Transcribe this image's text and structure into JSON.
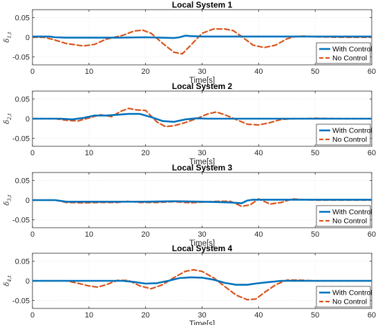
{
  "chart_data": [
    {
      "type": "line",
      "title": "Local System 1",
      "xlabel": "Time[s]",
      "ylabel_main": "δ",
      "ylabel_sub": "1,t",
      "xlim": [
        0,
        60
      ],
      "ylim": [
        -0.07,
        0.07
      ],
      "xticks": [
        "0",
        "10",
        "20",
        "30",
        "40",
        "50",
        "60"
      ],
      "yticks": [
        "0.05",
        "0",
        "-0.05"
      ],
      "grid": true,
      "legend_position": "lower-right",
      "series": [
        {
          "name": "With Control",
          "color": "#0072BD",
          "style": "solid",
          "x": [
            0,
            3,
            4,
            6,
            10,
            15,
            20,
            25,
            26,
            27,
            28,
            30,
            40,
            50,
            60
          ],
          "y": [
            0.002,
            0.002,
            0.0,
            -0.001,
            -0.001,
            -0.001,
            0.0,
            -0.002,
            0.0,
            0.004,
            0.003,
            0.002,
            0.002,
            0.002,
            0.002
          ]
        },
        {
          "name": "No Control",
          "color": "#D95319",
          "style": "dashed",
          "x": [
            0,
            2,
            3.5,
            6,
            9,
            11,
            13,
            16,
            18,
            19.5,
            21,
            23,
            25,
            26.5,
            28,
            30,
            32,
            34,
            35.5,
            37,
            39,
            41,
            43,
            45,
            46.5,
            48,
            50,
            55,
            60
          ],
          "y": [
            0.0,
            0.0,
            -0.005,
            -0.016,
            -0.022,
            -0.018,
            -0.005,
            0.005,
            0.016,
            0.018,
            0.01,
            -0.015,
            -0.038,
            -0.042,
            -0.02,
            0.01,
            0.021,
            0.021,
            0.017,
            0.002,
            -0.02,
            -0.026,
            -0.02,
            -0.004,
            0.002,
            0.003,
            0.001,
            0.0,
            0.0
          ]
        }
      ]
    },
    {
      "type": "line",
      "title": "Local System 2",
      "xlabel": "Time[s]",
      "ylabel_main": "δ",
      "ylabel_sub": "2,t",
      "xlim": [
        0,
        60
      ],
      "ylim": [
        -0.07,
        0.07
      ],
      "xticks": [
        "0",
        "10",
        "20",
        "30",
        "40",
        "50",
        "60"
      ],
      "yticks": [
        "0.05",
        "0",
        "-0.05"
      ],
      "grid": true,
      "legend_position": "lower-right",
      "series": [
        {
          "name": "With Control",
          "color": "#0072BD",
          "style": "solid",
          "x": [
            0,
            5,
            7,
            9,
            11,
            13,
            15,
            17,
            19,
            21,
            23,
            25,
            27,
            29,
            31,
            35,
            40,
            50,
            60
          ],
          "y": [
            0.0,
            0.0,
            -0.002,
            0.002,
            0.008,
            0.008,
            0.01,
            0.012,
            0.012,
            0.004,
            -0.006,
            -0.008,
            -0.002,
            0.001,
            0.0,
            0.0,
            0.0,
            0.0,
            0.0
          ]
        },
        {
          "name": "No Control",
          "color": "#D95319",
          "style": "dashed",
          "x": [
            0,
            4,
            6,
            8,
            10,
            12,
            14,
            15.5,
            17,
            18.5,
            20,
            22,
            23.5,
            25,
            27,
            29,
            31,
            32.5,
            34,
            36,
            38,
            40,
            42,
            44,
            46,
            48,
            50,
            55,
            60
          ],
          "y": [
            0.0,
            0.0,
            -0.004,
            -0.006,
            0.002,
            0.01,
            0.005,
            0.018,
            0.026,
            0.022,
            0.021,
            -0.008,
            -0.02,
            -0.018,
            -0.01,
            0.0,
            0.012,
            0.017,
            0.01,
            -0.002,
            -0.014,
            -0.016,
            -0.01,
            -0.002,
            0.0,
            0.0,
            0.001,
            0.0,
            0.0
          ]
        }
      ]
    },
    {
      "type": "line",
      "title": "Local System 3",
      "xlabel": "Time[s]",
      "ylabel_main": "δ",
      "ylabel_sub": "3,t",
      "xlim": [
        0,
        60
      ],
      "ylim": [
        -0.07,
        0.07
      ],
      "xticks": [
        "0",
        "10",
        "20",
        "30",
        "40",
        "50",
        "60"
      ],
      "yticks": [
        "0.05",
        "0",
        "-0.05"
      ],
      "grid": true,
      "legend_position": "lower-right",
      "series": [
        {
          "name": "With Control",
          "color": "#0072BD",
          "style": "solid",
          "x": [
            0,
            4,
            6,
            10,
            15,
            20,
            25,
            30,
            33,
            35,
            37,
            38,
            39,
            42,
            50,
            60
          ],
          "y": [
            0.0,
            0.0,
            -0.004,
            -0.004,
            -0.004,
            -0.004,
            -0.003,
            -0.004,
            -0.005,
            -0.006,
            -0.008,
            -0.001,
            0.001,
            0.001,
            0.001,
            0.001
          ]
        },
        {
          "name": "No Control",
          "color": "#D95319",
          "style": "dashed",
          "x": [
            0,
            4,
            6,
            9,
            12,
            15,
            17,
            19,
            22,
            25,
            28,
            30,
            33,
            35,
            37,
            38.5,
            40,
            42,
            44,
            46,
            48,
            50,
            55,
            60
          ],
          "y": [
            0.0,
            0.0,
            -0.006,
            -0.007,
            -0.006,
            -0.006,
            -0.003,
            -0.006,
            -0.006,
            -0.004,
            -0.007,
            -0.005,
            -0.003,
            -0.003,
            -0.016,
            -0.012,
            0.003,
            -0.01,
            -0.006,
            0.003,
            0.001,
            0.0,
            0.0,
            0.0
          ]
        }
      ]
    },
    {
      "type": "line",
      "title": "Local System 4",
      "xlabel": "Time[s]",
      "ylabel_main": "δ",
      "ylabel_sub": "4,t",
      "xlim": [
        0,
        60
      ],
      "ylim": [
        -0.07,
        0.07
      ],
      "xticks": [
        "0",
        "10",
        "20",
        "30",
        "40",
        "50",
        "60"
      ],
      "yticks": [
        "0.05",
        "0",
        "-0.05"
      ],
      "grid": true,
      "legend_position": "lower-right",
      "series": [
        {
          "name": "With Control",
          "color": "#0072BD",
          "style": "solid",
          "x": [
            0,
            10,
            16,
            18,
            20,
            22,
            24,
            26,
            28,
            30,
            32,
            34,
            36,
            38,
            40,
            42,
            44,
            46,
            50,
            60
          ],
          "y": [
            0.0,
            0.0,
            0.0,
            -0.003,
            -0.007,
            -0.006,
            0.0,
            0.007,
            0.009,
            0.008,
            0.003,
            -0.005,
            -0.01,
            -0.01,
            -0.006,
            -0.003,
            0.0,
            0.0,
            0.0,
            0.0
          ]
        },
        {
          "name": "No Control",
          "color": "#D95319",
          "style": "dashed",
          "x": [
            0,
            6,
            8,
            10,
            11.5,
            13,
            15,
            17,
            19,
            21,
            23,
            25,
            27,
            28.5,
            30,
            32,
            34,
            36,
            38,
            39.5,
            41,
            43,
            45,
            47,
            50,
            55,
            60
          ],
          "y": [
            0.0,
            0.0,
            -0.006,
            -0.013,
            -0.016,
            -0.01,
            0.001,
            0.001,
            -0.013,
            -0.02,
            -0.01,
            0.008,
            0.024,
            0.028,
            0.024,
            0.008,
            -0.014,
            -0.036,
            -0.048,
            -0.046,
            -0.03,
            -0.01,
            0.002,
            0.002,
            0.0,
            0.0,
            0.0
          ]
        }
      ]
    }
  ]
}
